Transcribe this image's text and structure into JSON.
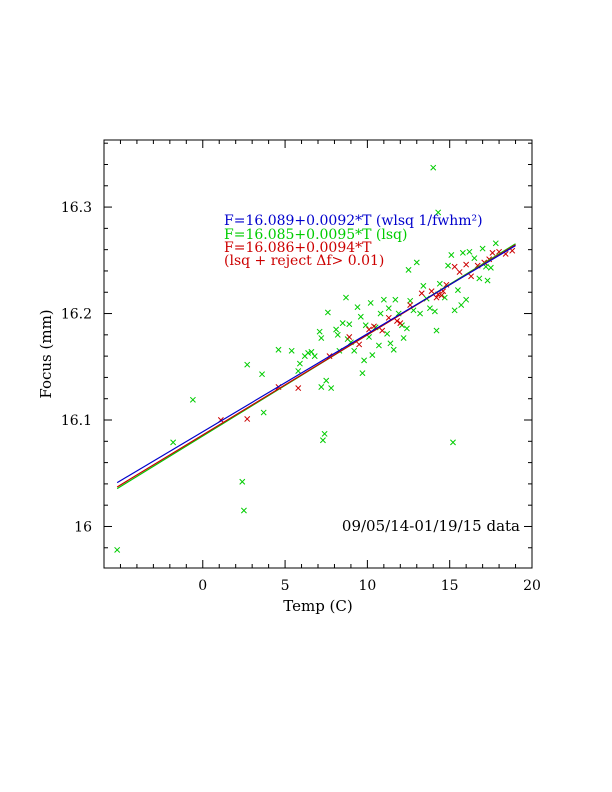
{
  "chart_data": {
    "type": "scatter",
    "xlabel": "Temp (C)",
    "ylabel": "Focus (mm)",
    "xlim": [
      -6,
      20
    ],
    "ylim": [
      15.961,
      16.363
    ],
    "x_ticks": [
      0,
      5,
      10,
      15,
      20
    ],
    "x_tick_labels": [
      "0",
      "5",
      "10",
      "15",
      "20"
    ],
    "y_ticks": [
      16.0,
      16.1,
      16.2,
      16.3
    ],
    "y_tick_labels": [
      "16",
      "16.1",
      "16.2",
      "16.3"
    ],
    "grid": false,
    "annotation": "09/05/14-01/19/15 data",
    "fits": [
      {
        "label": "F=16.089+0.0092*T (wlsq 1/fwhm²)",
        "color": "#0000cc",
        "intercept": 16.089,
        "slope": 0.0092,
        "x_range": [
          -5.2,
          19
        ]
      },
      {
        "label": "F=16.085+0.0095*T (lsq)",
        "color": "#00cc00",
        "intercept": 16.085,
        "slope": 0.0095,
        "x_range": [
          -5.2,
          19
        ]
      },
      {
        "label": "F=16.086+0.0094*T",
        "color": "#cc0000",
        "intercept": 16.086,
        "slope": 0.0094,
        "x_range": [
          -5.2,
          19
        ]
      }
    ],
    "fit_label_extra": "(lsq + reject Δf> 0.01)",
    "series": [
      {
        "color": "#00cc00",
        "marker": "x",
        "points": [
          [
            -5.2,
            15.978
          ],
          [
            -1.8,
            16.079
          ],
          [
            -0.6,
            16.119
          ],
          [
            2.4,
            16.042
          ],
          [
            2.5,
            16.015
          ],
          [
            2.7,
            16.152
          ],
          [
            3.6,
            16.143
          ],
          [
            3.7,
            16.107
          ],
          [
            4.6,
            16.166
          ],
          [
            5.4,
            16.165
          ],
          [
            5.8,
            16.146
          ],
          [
            5.9,
            16.153
          ],
          [
            6.2,
            16.16
          ],
          [
            6.4,
            16.163
          ],
          [
            6.6,
            16.164
          ],
          [
            6.8,
            16.16
          ],
          [
            7.1,
            16.183
          ],
          [
            7.2,
            16.177
          ],
          [
            7.2,
            16.131
          ],
          [
            7.3,
            16.081
          ],
          [
            7.4,
            16.087
          ],
          [
            7.5,
            16.137
          ],
          [
            7.6,
            16.201
          ],
          [
            7.8,
            16.13
          ],
          [
            8.1,
            16.185
          ],
          [
            8.2,
            16.18
          ],
          [
            8.3,
            16.165
          ],
          [
            8.5,
            16.191
          ],
          [
            8.7,
            16.215
          ],
          [
            8.8,
            16.176
          ],
          [
            8.9,
            16.19
          ],
          [
            9.0,
            16.173
          ],
          [
            9.2,
            16.165
          ],
          [
            9.4,
            16.206
          ],
          [
            9.6,
            16.197
          ],
          [
            9.7,
            16.144
          ],
          [
            9.8,
            16.156
          ],
          [
            9.9,
            16.189
          ],
          [
            10.1,
            16.178
          ],
          [
            10.2,
            16.21
          ],
          [
            10.3,
            16.161
          ],
          [
            10.5,
            16.187
          ],
          [
            10.7,
            16.17
          ],
          [
            10.8,
            16.2
          ],
          [
            11.0,
            16.213
          ],
          [
            11.2,
            16.181
          ],
          [
            11.3,
            16.205
          ],
          [
            11.4,
            16.172
          ],
          [
            11.6,
            16.166
          ],
          [
            11.7,
            16.213
          ],
          [
            11.9,
            16.2
          ],
          [
            12.1,
            16.189
          ],
          [
            12.2,
            16.177
          ],
          [
            12.4,
            16.186
          ],
          [
            12.5,
            16.241
          ],
          [
            12.6,
            16.212
          ],
          [
            12.8,
            16.203
          ],
          [
            13.0,
            16.248
          ],
          [
            13.2,
            16.2
          ],
          [
            13.4,
            16.226
          ],
          [
            13.6,
            16.214
          ],
          [
            13.8,
            16.205
          ],
          [
            14.0,
            16.337
          ],
          [
            14.1,
            16.202
          ],
          [
            14.2,
            16.184
          ],
          [
            14.3,
            16.295
          ],
          [
            14.4,
            16.228
          ],
          [
            14.7,
            16.215
          ],
          [
            14.9,
            16.245
          ],
          [
            15.1,
            16.255
          ],
          [
            15.2,
            16.079
          ],
          [
            15.3,
            16.203
          ],
          [
            15.5,
            16.222
          ],
          [
            15.7,
            16.208
          ],
          [
            15.8,
            16.257
          ],
          [
            16.0,
            16.213
          ],
          [
            16.2,
            16.258
          ],
          [
            16.5,
            16.252
          ],
          [
            16.8,
            16.233
          ],
          [
            17.0,
            16.261
          ],
          [
            17.2,
            16.244
          ],
          [
            17.3,
            16.231
          ],
          [
            17.5,
            16.243
          ],
          [
            17.8,
            16.266
          ]
        ]
      },
      {
        "color": "#cc0000",
        "marker": "x",
        "points": [
          [
            1.1,
            16.1
          ],
          [
            2.7,
            16.101
          ],
          [
            4.6,
            16.131
          ],
          [
            5.8,
            16.13
          ],
          [
            7.7,
            16.16
          ],
          [
            8.9,
            16.178
          ],
          [
            9.5,
            16.171
          ],
          [
            10.1,
            16.185
          ],
          [
            10.4,
            16.188
          ],
          [
            10.9,
            16.184
          ],
          [
            11.3,
            16.196
          ],
          [
            11.8,
            16.193
          ],
          [
            12.0,
            16.191
          ],
          [
            12.6,
            16.208
          ],
          [
            13.3,
            16.219
          ],
          [
            13.9,
            16.221
          ],
          [
            14.2,
            16.215
          ],
          [
            14.3,
            16.218
          ],
          [
            14.5,
            16.217
          ],
          [
            14.6,
            16.221
          ],
          [
            14.8,
            16.227
          ],
          [
            15.3,
            16.244
          ],
          [
            15.6,
            16.239
          ],
          [
            16.0,
            16.246
          ],
          [
            16.3,
            16.235
          ],
          [
            16.7,
            16.245
          ],
          [
            17.1,
            16.248
          ],
          [
            17.4,
            16.251
          ],
          [
            17.6,
            16.257
          ],
          [
            18.0,
            16.258
          ],
          [
            18.4,
            16.256
          ],
          [
            18.8,
            16.259
          ]
        ]
      }
    ]
  }
}
